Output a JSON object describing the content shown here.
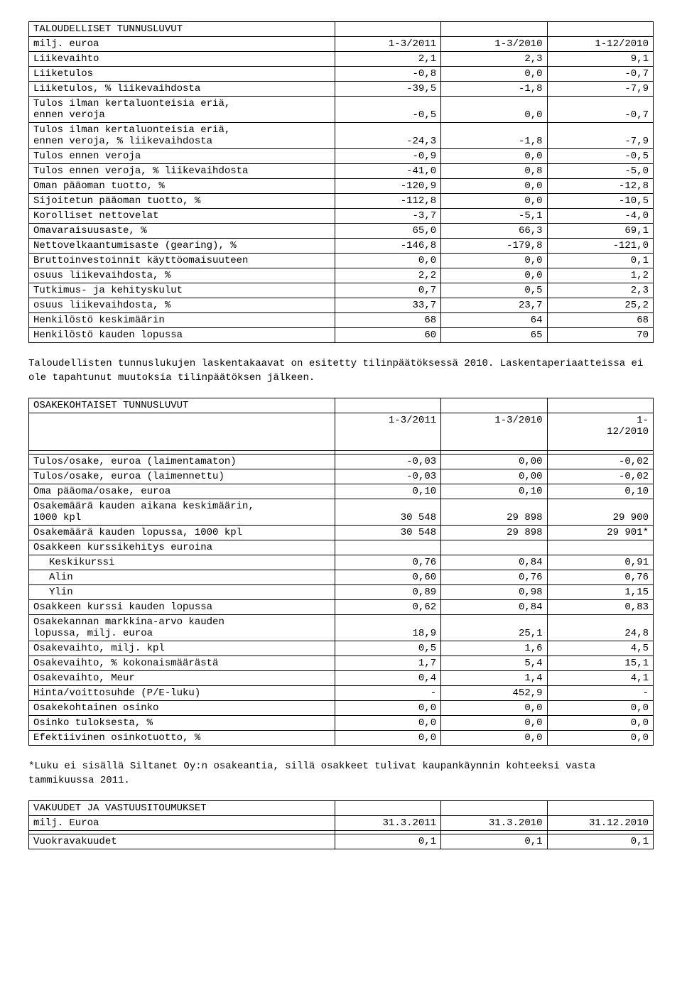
{
  "table1": {
    "header_title": "TALOUDELLISET TUNNUSLUVUT",
    "header_sub": "milj. euroa",
    "cols": [
      "1-3/2011",
      "1-3/2010",
      "1-12/2010"
    ],
    "rows": [
      {
        "label": "Liikevaihto",
        "vals": [
          "2,1",
          "2,3",
          "9,1"
        ]
      },
      {
        "label": "Liiketulos",
        "vals": [
          "-0,8",
          "0,0",
          "-0,7"
        ]
      },
      {
        "label": "Liiketulos, % liikevaihdosta",
        "vals": [
          "-39,5",
          "-1,8",
          "-7,9"
        ]
      },
      {
        "label": "Tulos ilman kertaluonteisia eriä,\nennen veroja",
        "vals": [
          "-0,5",
          "0,0",
          "-0,7"
        ]
      },
      {
        "label": "Tulos ilman kertaluonteisia eriä,\nennen veroja, % liikevaihdosta",
        "vals": [
          "-24,3",
          "-1,8",
          "-7,9"
        ]
      },
      {
        "label": "Tulos ennen veroja",
        "vals": [
          "-0,9",
          "0,0",
          "-0,5"
        ]
      },
      {
        "label": "Tulos ennen veroja, % liikevaihdosta",
        "vals": [
          "-41,0",
          "0,8",
          "-5,0"
        ]
      },
      {
        "label": "Oman pääoman tuotto, %",
        "vals": [
          "-120,9",
          "0,0",
          "-12,8"
        ]
      },
      {
        "label": "Sijoitetun pääoman tuotto, %",
        "vals": [
          "-112,8",
          "0,0",
          "-10,5"
        ]
      },
      {
        "label": "Korolliset nettovelat",
        "vals": [
          "-3,7",
          "-5,1",
          "-4,0"
        ]
      },
      {
        "label": "Omavaraisuusaste, %",
        "vals": [
          "65,0",
          "66,3",
          "69,1"
        ]
      },
      {
        "label": "Nettovelkaantumisaste (gearing), %",
        "vals": [
          "-146,8",
          "-179,8",
          "-121,0"
        ]
      },
      {
        "label": "Bruttoinvestoinnit käyttöomaisuuteen",
        "vals": [
          "0,0",
          "0,0",
          "0,1"
        ]
      },
      {
        "label": "osuus liikevaihdosta, %",
        "vals": [
          "2,2",
          "0,0",
          "1,2"
        ]
      },
      {
        "label": "Tutkimus- ja kehityskulut",
        "vals": [
          "0,7",
          "0,5",
          "2,3"
        ]
      },
      {
        "label": "osuus liikevaihdosta, %",
        "vals": [
          "33,7",
          "23,7",
          "25,2"
        ]
      },
      {
        "label": "Henkilöstö keskimäärin",
        "vals": [
          "68",
          "64",
          "68"
        ]
      },
      {
        "label": "Henkilöstö kauden lopussa",
        "vals": [
          "60",
          "65",
          "70"
        ]
      }
    ]
  },
  "para1": "Taloudellisten tunnuslukujen laskentakaavat on esitetty tilinpäätöksessä 2010.\nLaskentaperiaatteissa ei ole tapahtunut muutoksia tilinpäätöksen jälkeen.",
  "table2": {
    "header_title": "OSAKEKOHTAISET TUNNUSLUVUT",
    "cols": [
      "1-3/2011",
      "1-3/2010",
      "1-\n12/2010"
    ],
    "rows": [
      {
        "label": "Tulos/osake, euroa (laimentamaton)",
        "vals": [
          "-0,03",
          "0,00",
          "-0,02"
        ]
      },
      {
        "label": "Tulos/osake, euroa (laimennettu)",
        "vals": [
          "-0,03",
          "0,00",
          "-0,02"
        ]
      },
      {
        "label": "Oma pääoma/osake, euroa",
        "vals": [
          "0,10",
          "0,10",
          "0,10"
        ]
      },
      {
        "label": "Osakemäärä kauden aikana keskimäärin,\n1000 kpl",
        "vals": [
          "30 548",
          "29 898",
          "29 900"
        ]
      },
      {
        "label": "Osakemäärä kauden lopussa, 1000 kpl",
        "vals": [
          "30 548",
          "29 898",
          "29 901*"
        ]
      },
      {
        "label": "Osakkeen kurssikehitys euroina",
        "vals": [
          "",
          "",
          ""
        ]
      },
      {
        "label": "Keskikurssi",
        "indent": true,
        "vals": [
          "0,76",
          "0,84",
          "0,91"
        ]
      },
      {
        "label": "Alin",
        "indent": true,
        "vals": [
          "0,60",
          "0,76",
          "0,76"
        ]
      },
      {
        "label": "Ylin",
        "indent": true,
        "vals": [
          "0,89",
          "0,98",
          "1,15"
        ]
      },
      {
        "label": "Osakkeen kurssi kauden lopussa",
        "vals": [
          "0,62",
          "0,84",
          "0,83"
        ]
      },
      {
        "label": "Osakekannan markkina-arvo kauden\nlopussa, milj. euroa",
        "vals": [
          "18,9",
          "25,1",
          "24,8"
        ]
      },
      {
        "label": "Osakevaihto, milj. kpl",
        "vals": [
          "0,5",
          "1,6",
          "4,5"
        ]
      },
      {
        "label": "Osakevaihto, % kokonaismäärästä",
        "vals": [
          "1,7",
          "5,4",
          "15,1"
        ]
      },
      {
        "label": "Osakevaihto, Meur",
        "vals": [
          "0,4",
          "1,4",
          "4,1"
        ]
      },
      {
        "label": "Hinta/voittosuhde (P/E-luku)",
        "vals": [
          "-",
          "452,9",
          "-"
        ]
      },
      {
        "label": "Osakekohtainen osinko",
        "vals": [
          "0,0",
          "0,0",
          "0,0"
        ]
      },
      {
        "label": "Osinko tuloksesta, %",
        "vals": [
          "0,0",
          "0,0",
          "0,0"
        ]
      },
      {
        "label": "Efektiivinen osinkotuotto, %",
        "vals": [
          "0,0",
          "0,0",
          "0,0"
        ]
      }
    ]
  },
  "para2": "*Luku ei sisällä Siltanet Oy:n osakeantia, sillä\nosakkeet tulivat kaupankäynnin kohteeksi vasta\ntammikuussa 2011.",
  "table3": {
    "header_title": "VAKUUDET JA VASTUUSITOUMUKSET",
    "header_sub": "milj. Euroa",
    "cols": [
      "31.3.2011",
      "31.3.2010",
      "31.12.2010"
    ],
    "rows": [
      {
        "label": "Vuokravakuudet",
        "vals": [
          "0,1",
          "0,1",
          "0,1"
        ]
      }
    ]
  },
  "col_widths": {
    "label_pct": "49%",
    "num_pct": "17%"
  }
}
